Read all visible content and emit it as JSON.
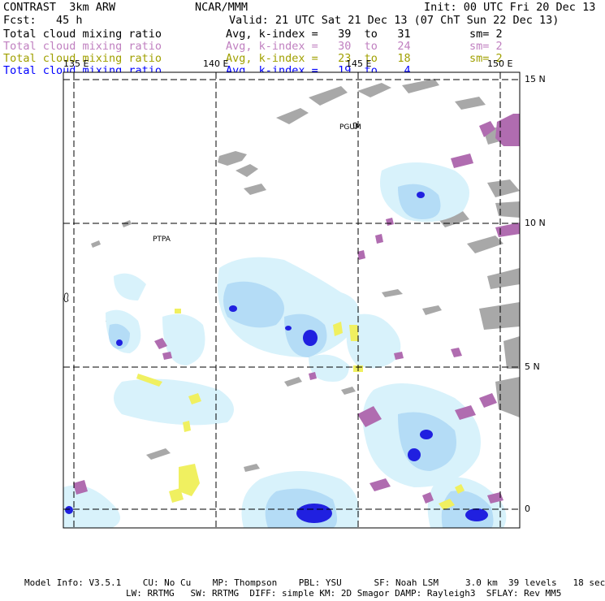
{
  "header": {
    "title_left": "CONTRAST  3km ARW",
    "title_center": "NCAR/MMM",
    "init": "Init: 00 UTC Fri 20 Dec 13",
    "fcst": "Fcst:   45 h",
    "valid": "Valid: 21 UTC Sat 21 Dec 13 (07 ChT Sun 22 Dec 13)",
    "rows": [
      {
        "field": "Total cloud mixing ratio",
        "kindex": "Avg, k-index =   39  to   31",
        "sm": "sm= 2",
        "color": "#000000"
      },
      {
        "field": "Total cloud mixing ratio",
        "kindex": "Avg, k-index =   30  to   24",
        "sm": "sm= 2",
        "color": "#c080c0"
      },
      {
        "field": "Total cloud mixing ratio",
        "kindex": "Avg, k-index =   23  to   18",
        "sm": "sm= 2",
        "color": "#a0a000"
      },
      {
        "field": "Total cloud mixing ratio",
        "kindex": "Avg, k-index =   19  to    4",
        "sm": "",
        "color": "#0000ff"
      }
    ]
  },
  "map": {
    "lon_labels": [
      "135 E",
      "140 E",
      "145 E",
      "150 E"
    ],
    "lat_labels": [
      "15 N",
      "10 N",
      "5 N",
      "0"
    ],
    "places": [
      "PGUM",
      "PTPA"
    ],
    "colors": {
      "layer1": "#a8a8a8",
      "layer2": "#b06cb0",
      "layer3": "#f0f060",
      "layer4_light": "#d8f2fb",
      "layer4_mid": "#b4dcf6",
      "layer4_dark": "#2020e0",
      "grid": "#000000"
    }
  },
  "footer": {
    "line1": "Model Info: V3.5.1    CU: No Cu    MP: Thompson    PBL: YSU      SF: Noah LSM     3.0 km  39 levels   18 sec",
    "line2": "LW: RRTMG   SW: RRTMG  DIFF: simple KM: 2D Smagor DAMP: Rayleigh3  SFLAY: Rev MM5"
  }
}
